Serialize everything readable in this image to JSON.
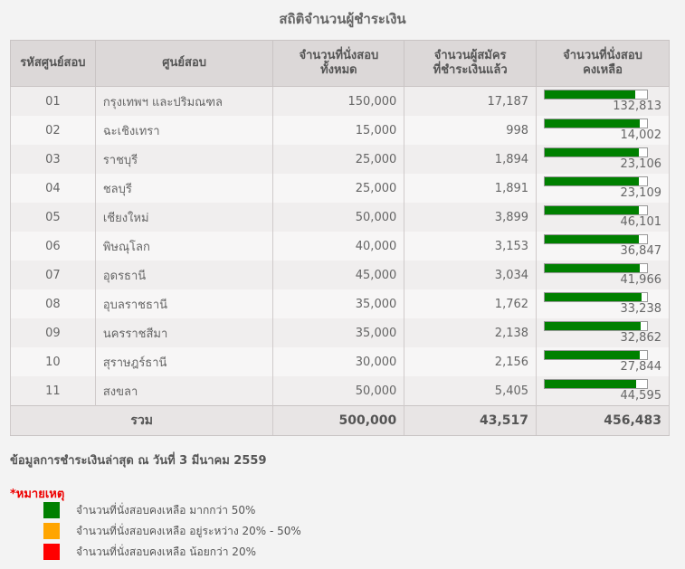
{
  "title": "สถิติจำนวนผู้ชำระเงิน",
  "headers": {
    "code": "รหัสศูนย์สอบ",
    "center": "ศูนย์สอบ",
    "total_line1": "จำนวนที่นั่งสอบ",
    "total_line2": "ทั้งหมด",
    "paid_line1": "จำนวนผู้สมัคร",
    "paid_line2": "ที่ชำระเงินแล้ว",
    "remaining_line1": "จำนวนที่นั่งสอบ",
    "remaining_line2": "คงเหลือ"
  },
  "rows": [
    {
      "code": "01",
      "center": "กรุงเทพฯ และปริมณฑล",
      "total": "150,000",
      "paid": "17,187",
      "remaining": "132,813",
      "remaining_fraction": 0.885
    },
    {
      "code": "02",
      "center": "ฉะเชิงเทรา",
      "total": "15,000",
      "paid": "998",
      "remaining": "14,002",
      "remaining_fraction": 0.933
    },
    {
      "code": "03",
      "center": "ราชบุรี",
      "total": "25,000",
      "paid": "1,894",
      "remaining": "23,106",
      "remaining_fraction": 0.924
    },
    {
      "code": "04",
      "center": "ชลบุรี",
      "total": "25,000",
      "paid": "1,891",
      "remaining": "23,109",
      "remaining_fraction": 0.924
    },
    {
      "code": "05",
      "center": "เชียงใหม่",
      "total": "50,000",
      "paid": "3,899",
      "remaining": "46,101",
      "remaining_fraction": 0.922
    },
    {
      "code": "06",
      "center": "พิษณุโลก",
      "total": "40,000",
      "paid": "3,153",
      "remaining": "36,847",
      "remaining_fraction": 0.921
    },
    {
      "code": "07",
      "center": "อุดรธานี",
      "total": "45,000",
      "paid": "3,034",
      "remaining": "41,966",
      "remaining_fraction": 0.933
    },
    {
      "code": "08",
      "center": "อุบลราชธานี",
      "total": "35,000",
      "paid": "1,762",
      "remaining": "33,238",
      "remaining_fraction": 0.95
    },
    {
      "code": "09",
      "center": "นครราชสีมา",
      "total": "35,000",
      "paid": "2,138",
      "remaining": "32,862",
      "remaining_fraction": 0.939
    },
    {
      "code": "10",
      "center": "สุราษฎร์ธานี",
      "total": "30,000",
      "paid": "2,156",
      "remaining": "27,844",
      "remaining_fraction": 0.928
    },
    {
      "code": "11",
      "center": "สงขลา",
      "total": "50,000",
      "paid": "5,405",
      "remaining": "44,595",
      "remaining_fraction": 0.892
    }
  ],
  "totals": {
    "label": "รวม",
    "total": "500,000",
    "paid": "43,517",
    "remaining": "456,483"
  },
  "update_note": "ข้อมูลการชำระเงินล่าสุด ณ วันที่ 3 มีนาคม 2559",
  "remark_title": "*หมายเหตุ",
  "legend": [
    {
      "label": "จำนวนที่นั่งสอบคงเหลือ มากกว่า 50%",
      "color": "#008000"
    },
    {
      "label": "จำนวนที่นั่งสอบคงเหลือ อยู่ระหว่าง 20% - 50%",
      "color": "#ffa500"
    },
    {
      "label": "จำนวนที่นั่งสอบคงเหลือ น้อยกว่า 20%",
      "color": "#ff0000"
    }
  ]
}
